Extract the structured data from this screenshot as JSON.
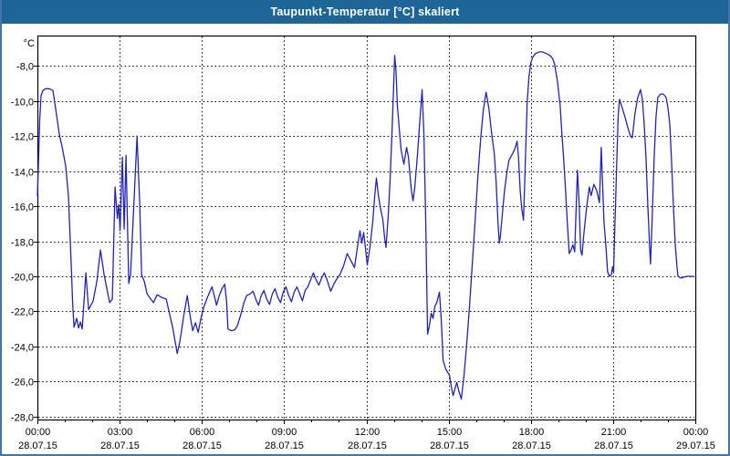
{
  "window": {
    "title": "Taupunkt-Temperatur [°C] skaliert"
  },
  "colors": {
    "title_bar_bg": "#1d6596",
    "title_text": "#ffffff",
    "window_border": "#4076ad",
    "plot_background": "#ffffff",
    "grid_and_frame": "#000000",
    "line": "#2222b8",
    "tick_label_text": "#000000"
  },
  "chart_data": {
    "type": "line",
    "title": "Taupunkt-Temperatur [°C] skaliert",
    "y_axis_unit_label": "°C",
    "grid": "dotted",
    "legend": "none",
    "ylim": [
      -28.2,
      -6.3
    ],
    "x_unit": "minutes_since_00:00_28.07.15",
    "x_range_minutes": [
      0,
      1440
    ],
    "x_major_tick_every_minutes": 180,
    "x_minor_tick_every_minutes": 60,
    "y_ticks": [
      {
        "value": -8,
        "label": "-8,0"
      },
      {
        "value": -10,
        "label": "-10,0"
      },
      {
        "value": -12,
        "label": "-12,0"
      },
      {
        "value": -14,
        "label": "-14,0"
      },
      {
        "value": -16,
        "label": "-16,0"
      },
      {
        "value": -18,
        "label": "-18,0"
      },
      {
        "value": -20,
        "label": "-20,0"
      },
      {
        "value": -22,
        "label": "-22,0"
      },
      {
        "value": -24,
        "label": "-24,0"
      },
      {
        "value": -26,
        "label": "-26,0"
      },
      {
        "value": -28,
        "label": "-28,0"
      }
    ],
    "x_ticks": [
      {
        "minutes": 0,
        "time": "00:00",
        "date": "28.07.15"
      },
      {
        "minutes": 180,
        "time": "03:00",
        "date": "28.07.15"
      },
      {
        "minutes": 360,
        "time": "06:00",
        "date": "28.07.15"
      },
      {
        "minutes": 540,
        "time": "09:00",
        "date": "28.07.15"
      },
      {
        "minutes": 720,
        "time": "12:00",
        "date": "28.07.15"
      },
      {
        "minutes": 900,
        "time": "15:00",
        "date": "28.07.15"
      },
      {
        "minutes": 1080,
        "time": "18:00",
        "date": "28.07.15"
      },
      {
        "minutes": 1260,
        "time": "21:00",
        "date": "28.07.15"
      },
      {
        "minutes": 1440,
        "time": "00:00",
        "date": "29.07.15"
      }
    ],
    "series": [
      {
        "name": "Taupunkt-Temperatur",
        "color": "#2222b8",
        "points": [
          [
            0,
            -15.4
          ],
          [
            2,
            -13.8
          ],
          [
            5,
            -11.1
          ],
          [
            8,
            -9.7
          ],
          [
            12,
            -9.4
          ],
          [
            18,
            -9.3
          ],
          [
            26,
            -9.3
          ],
          [
            34,
            -9.4
          ],
          [
            42,
            -10.8
          ],
          [
            48,
            -11.9
          ],
          [
            54,
            -12.6
          ],
          [
            62,
            -13.7
          ],
          [
            68,
            -15.4
          ],
          [
            74,
            -19.4
          ],
          [
            77,
            -21.5
          ],
          [
            80,
            -22.9
          ],
          [
            86,
            -22.4
          ],
          [
            90,
            -22.95
          ],
          [
            94,
            -22.6
          ],
          [
            98,
            -23.0
          ],
          [
            106,
            -19.8
          ],
          [
            112,
            -21.9
          ],
          [
            122,
            -21.4
          ],
          [
            130,
            -20.3
          ],
          [
            138,
            -18.5
          ],
          [
            146,
            -19.9
          ],
          [
            158,
            -21.5
          ],
          [
            164,
            -21.3
          ],
          [
            170,
            -14.9
          ],
          [
            175,
            -16.7
          ],
          [
            178,
            -15.9
          ],
          [
            181,
            -17.4
          ],
          [
            186,
            -13.2
          ],
          [
            190,
            -17.3
          ],
          [
            194,
            -13.1
          ],
          [
            200,
            -20.4
          ],
          [
            204,
            -19.9
          ],
          [
            218,
            -12.0
          ],
          [
            224,
            -16.0
          ],
          [
            228,
            -19.9
          ],
          [
            234,
            -20.3
          ],
          [
            240,
            -21.0
          ],
          [
            248,
            -21.3
          ],
          [
            254,
            -21.5
          ],
          [
            262,
            -21.05
          ],
          [
            272,
            -21.2
          ],
          [
            282,
            -21.3
          ],
          [
            288,
            -22.0
          ],
          [
            296,
            -22.9
          ],
          [
            302,
            -23.8
          ],
          [
            306,
            -24.4
          ],
          [
            312,
            -23.7
          ],
          [
            320,
            -22.3
          ],
          [
            328,
            -21.1
          ],
          [
            334,
            -22.2
          ],
          [
            340,
            -23.1
          ],
          [
            346,
            -22.65
          ],
          [
            352,
            -23.2
          ],
          [
            358,
            -22.4
          ],
          [
            364,
            -21.75
          ],
          [
            372,
            -21.2
          ],
          [
            382,
            -20.6
          ],
          [
            388,
            -21.2
          ],
          [
            392,
            -21.65
          ],
          [
            398,
            -21.1
          ],
          [
            404,
            -20.7
          ],
          [
            410,
            -20.45
          ],
          [
            414,
            -21.4
          ],
          [
            417,
            -23.0
          ],
          [
            424,
            -23.1
          ],
          [
            432,
            -23.05
          ],
          [
            438,
            -22.8
          ],
          [
            446,
            -22.1
          ],
          [
            452,
            -21.5
          ],
          [
            458,
            -21.1
          ],
          [
            466,
            -21.0
          ],
          [
            472,
            -20.85
          ],
          [
            478,
            -21.3
          ],
          [
            484,
            -21.65
          ],
          [
            490,
            -21.1
          ],
          [
            496,
            -20.8
          ],
          [
            502,
            -21.3
          ],
          [
            508,
            -21.6
          ],
          [
            514,
            -21.0
          ],
          [
            520,
            -20.7
          ],
          [
            526,
            -21.2
          ],
          [
            532,
            -21.5
          ],
          [
            538,
            -20.9
          ],
          [
            544,
            -20.6
          ],
          [
            550,
            -21.1
          ],
          [
            556,
            -21.45
          ],
          [
            562,
            -20.9
          ],
          [
            568,
            -20.6
          ],
          [
            574,
            -21.0
          ],
          [
            580,
            -21.4
          ],
          [
            586,
            -20.8
          ],
          [
            592,
            -20.6
          ],
          [
            598,
            -20.2
          ],
          [
            604,
            -19.8
          ],
          [
            610,
            -20.2
          ],
          [
            616,
            -20.5
          ],
          [
            622,
            -20.1
          ],
          [
            628,
            -19.8
          ],
          [
            634,
            -20.2
          ],
          [
            642,
            -20.85
          ],
          [
            648,
            -20.5
          ],
          [
            654,
            -20.2
          ],
          [
            662,
            -19.9
          ],
          [
            670,
            -19.4
          ],
          [
            678,
            -18.7
          ],
          [
            686,
            -19.1
          ],
          [
            694,
            -19.5
          ],
          [
            700,
            -18.4
          ],
          [
            706,
            -17.4
          ],
          [
            710,
            -18.1
          ],
          [
            714,
            -17.5
          ],
          [
            718,
            -18.4
          ],
          [
            722,
            -19.35
          ],
          [
            728,
            -18.3
          ],
          [
            734,
            -16.9
          ],
          [
            738,
            -15.5
          ],
          [
            742,
            -14.4
          ],
          [
            746,
            -15.3
          ],
          [
            750,
            -16.0
          ],
          [
            756,
            -16.75
          ],
          [
            760,
            -17.8
          ],
          [
            763,
            -18.35
          ],
          [
            768,
            -16.5
          ],
          [
            772,
            -14.5
          ],
          [
            776,
            -11.9
          ],
          [
            780,
            -9.0
          ],
          [
            782,
            -7.4
          ],
          [
            785,
            -8.3
          ],
          [
            788,
            -10.3
          ],
          [
            792,
            -11.6
          ],
          [
            796,
            -12.8
          ],
          [
            802,
            -13.6
          ],
          [
            808,
            -12.65
          ],
          [
            812,
            -13.2
          ],
          [
            818,
            -15.0
          ],
          [
            822,
            -15.7
          ],
          [
            826,
            -14.9
          ],
          [
            832,
            -13.0
          ],
          [
            836,
            -11.5
          ],
          [
            842,
            -9.35
          ],
          [
            846,
            -12.0
          ],
          [
            850,
            -17.0
          ],
          [
            854,
            -23.3
          ],
          [
            858,
            -22.8
          ],
          [
            862,
            -22.1
          ],
          [
            866,
            -22.4
          ],
          [
            870,
            -21.7
          ],
          [
            874,
            -21.5
          ],
          [
            880,
            -20.9
          ],
          [
            884,
            -22.5
          ],
          [
            888,
            -24.8
          ],
          [
            894,
            -25.3
          ],
          [
            902,
            -25.65
          ],
          [
            906,
            -26.3
          ],
          [
            910,
            -26.8
          ],
          [
            914,
            -26.4
          ],
          [
            918,
            -26.05
          ],
          [
            922,
            -26.5
          ],
          [
            928,
            -27.0
          ],
          [
            934,
            -25.6
          ],
          [
            940,
            -23.7
          ],
          [
            946,
            -21.6
          ],
          [
            952,
            -19.2
          ],
          [
            958,
            -16.8
          ],
          [
            964,
            -14.3
          ],
          [
            970,
            -12.2
          ],
          [
            976,
            -10.5
          ],
          [
            982,
            -9.5
          ],
          [
            988,
            -10.4
          ],
          [
            994,
            -11.8
          ],
          [
            1000,
            -13.0
          ],
          [
            1004,
            -14.6
          ],
          [
            1008,
            -16.9
          ],
          [
            1011,
            -18.1
          ],
          [
            1013,
            -17.8
          ],
          [
            1022,
            -15.2
          ],
          [
            1028,
            -14.0
          ],
          [
            1032,
            -13.4
          ],
          [
            1038,
            -13.1
          ],
          [
            1044,
            -12.8
          ],
          [
            1050,
            -12.3
          ],
          [
            1053,
            -13.2
          ],
          [
            1057,
            -15.2
          ],
          [
            1060,
            -16.1
          ],
          [
            1064,
            -16.8
          ],
          [
            1068,
            -13.5
          ],
          [
            1072,
            -10.1
          ],
          [
            1076,
            -8.6
          ],
          [
            1080,
            -7.8
          ],
          [
            1084,
            -7.5
          ],
          [
            1090,
            -7.3
          ],
          [
            1098,
            -7.2
          ],
          [
            1106,
            -7.2
          ],
          [
            1114,
            -7.3
          ],
          [
            1122,
            -7.4
          ],
          [
            1128,
            -7.6
          ],
          [
            1132,
            -7.9
          ],
          [
            1138,
            -8.85
          ],
          [
            1144,
            -10.2
          ],
          [
            1148,
            -11.9
          ],
          [
            1152,
            -13.35
          ],
          [
            1156,
            -15.1
          ],
          [
            1160,
            -17.0
          ],
          [
            1164,
            -18.7
          ],
          [
            1168,
            -18.5
          ],
          [
            1172,
            -18.2
          ],
          [
            1176,
            -18.6
          ],
          [
            1182,
            -13.95
          ],
          [
            1186,
            -16.0
          ],
          [
            1189,
            -18.5
          ],
          [
            1192,
            -18.8
          ],
          [
            1196,
            -17.6
          ],
          [
            1202,
            -16.1
          ],
          [
            1208,
            -14.9
          ],
          [
            1212,
            -15.4
          ],
          [
            1218,
            -14.75
          ],
          [
            1224,
            -15.1
          ],
          [
            1230,
            -15.8
          ],
          [
            1234,
            -12.65
          ],
          [
            1240,
            -16.9
          ],
          [
            1244,
            -18.2
          ],
          [
            1248,
            -19.75
          ],
          [
            1252,
            -20.0
          ],
          [
            1256,
            -19.9
          ],
          [
            1259,
            -19.45
          ],
          [
            1261,
            -19.8
          ],
          [
            1264,
            -17.0
          ],
          [
            1268,
            -13.5
          ],
          [
            1271,
            -10.9
          ],
          [
            1274,
            -9.9
          ],
          [
            1280,
            -10.4
          ],
          [
            1286,
            -10.9
          ],
          [
            1292,
            -11.5
          ],
          [
            1298,
            -12.0
          ],
          [
            1302,
            -12.1
          ],
          [
            1308,
            -10.7
          ],
          [
            1314,
            -9.8
          ],
          [
            1320,
            -9.35
          ],
          [
            1324,
            -9.9
          ],
          [
            1328,
            -11.25
          ],
          [
            1332,
            -13.2
          ],
          [
            1336,
            -15.9
          ],
          [
            1340,
            -18.3
          ],
          [
            1342,
            -19.3
          ],
          [
            1346,
            -16.4
          ],
          [
            1350,
            -13.2
          ],
          [
            1354,
            -10.9
          ],
          [
            1358,
            -9.8
          ],
          [
            1364,
            -9.6
          ],
          [
            1370,
            -9.6
          ],
          [
            1376,
            -9.8
          ],
          [
            1380,
            -10.4
          ],
          [
            1384,
            -11.3
          ],
          [
            1388,
            -13.5
          ],
          [
            1392,
            -16.0
          ],
          [
            1396,
            -18.2
          ],
          [
            1400,
            -19.5
          ],
          [
            1402,
            -20.0
          ],
          [
            1408,
            -20.1
          ],
          [
            1414,
            -20.05
          ],
          [
            1422,
            -20.0
          ],
          [
            1430,
            -20.0
          ],
          [
            1436,
            -20.0
          ]
        ]
      }
    ]
  }
}
